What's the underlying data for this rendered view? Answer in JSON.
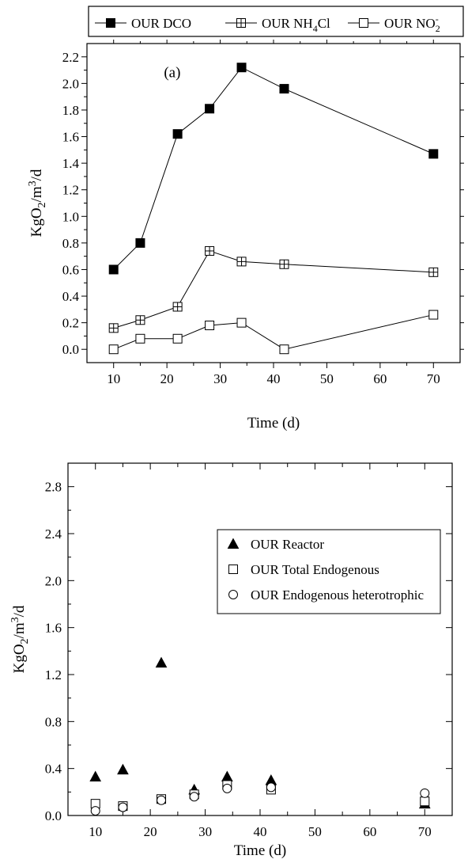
{
  "chart_data": [
    {
      "type": "line",
      "panel_label": "(a)",
      "xlabel": "Time (d)",
      "ylabel": "KgO2/m3/d",
      "xlim": [
        5,
        75
      ],
      "ylim": [
        -0.1,
        2.3
      ],
      "x_ticks": [
        10,
        20,
        30,
        40,
        50,
        60,
        70
      ],
      "y_ticks": [
        0.0,
        0.2,
        0.4,
        0.6,
        0.8,
        1.0,
        1.2,
        1.4,
        1.6,
        1.8,
        2.0,
        2.2
      ],
      "legend_position": "top (outside plot)",
      "x": [
        10,
        15,
        22,
        28,
        34,
        42,
        70
      ],
      "series": [
        {
          "name": "OUR DCO",
          "marker": "filled-square",
          "values": [
            0.6,
            0.8,
            1.62,
            1.81,
            2.12,
            1.96,
            1.47
          ]
        },
        {
          "name": "OUR NH4Cl",
          "marker": "crossed-square",
          "values": [
            0.16,
            0.22,
            0.32,
            0.74,
            0.66,
            0.64,
            0.58
          ]
        },
        {
          "name": "OUR NO2-",
          "marker": "open-square",
          "values": [
            0.0,
            0.08,
            0.08,
            0.18,
            0.2,
            0.0,
            0.26
          ]
        }
      ]
    },
    {
      "type": "scatter",
      "xlabel": "Time (d)",
      "ylabel": "KgO2/m3/d",
      "xlim": [
        5,
        75
      ],
      "ylim": [
        0.0,
        3.0
      ],
      "x_ticks": [
        10,
        20,
        30,
        40,
        50,
        60,
        70
      ],
      "y_ticks": [
        0.0,
        0.4,
        0.8,
        1.2,
        1.6,
        2.0,
        2.4,
        2.8
      ],
      "legend_position": "upper right (inside plot)",
      "x": [
        10,
        15,
        22,
        28,
        34,
        42,
        70
      ],
      "series": [
        {
          "name": "OUR Reactor",
          "marker": "filled-triangle",
          "values": [
            0.33,
            0.39,
            1.3,
            0.22,
            0.33,
            0.3,
            0.1
          ]
        },
        {
          "name": "OUR Total Endogenous",
          "marker": "open-square",
          "values": [
            0.1,
            0.08,
            0.14,
            0.18,
            0.26,
            0.22,
            0.12
          ]
        },
        {
          "name": "OUR Endogenous heterotrophic",
          "marker": "open-circle",
          "values": [
            0.04,
            0.07,
            0.13,
            0.16,
            0.23,
            0.24,
            0.19
          ]
        }
      ]
    }
  ]
}
